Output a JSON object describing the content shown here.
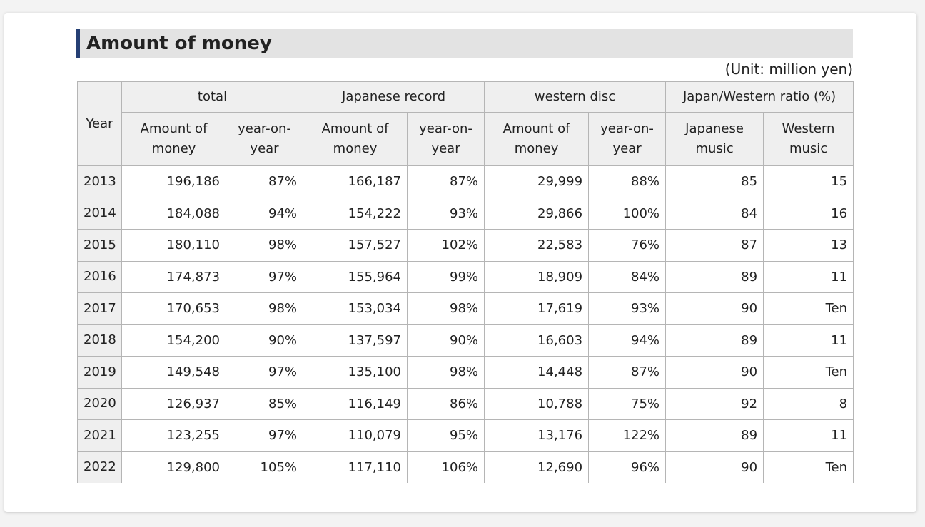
{
  "title": "Amount of money",
  "unit_note": "(Unit: million yen)",
  "colors": {
    "title_accent": "#253f74",
    "title_bar_bg": "#e3e3e3",
    "header_bg": "#efefef",
    "border": "#b5b5b5"
  },
  "table": {
    "year_header": "Year",
    "groups": [
      {
        "label": "total",
        "subs": [
          "Amount of money",
          "year-on-year"
        ]
      },
      {
        "label": "Japanese record",
        "subs": [
          "Amount of money",
          "year-on-year"
        ]
      },
      {
        "label": "western disc",
        "subs": [
          "Amount of money",
          "year-on-year"
        ]
      },
      {
        "label": "Japan/Western ratio (%)",
        "subs": [
          "Japanese music",
          "Western music"
        ]
      }
    ],
    "rows": [
      {
        "year": "2013",
        "values": [
          "196,186",
          "87%",
          "166,187",
          "87%",
          "29,999",
          "88%",
          "85",
          "15"
        ]
      },
      {
        "year": "2014",
        "values": [
          "184,088",
          "94%",
          "154,222",
          "93%",
          "29,866",
          "100%",
          "84",
          "16"
        ]
      },
      {
        "year": "2015",
        "values": [
          "180,110",
          "98%",
          "157,527",
          "102%",
          "22,583",
          "76%",
          "87",
          "13"
        ]
      },
      {
        "year": "2016",
        "values": [
          "174,873",
          "97%",
          "155,964",
          "99%",
          "18,909",
          "84%",
          "89",
          "11"
        ]
      },
      {
        "year": "2017",
        "values": [
          "170,653",
          "98%",
          "153,034",
          "98%",
          "17,619",
          "93%",
          "90",
          "Ten"
        ]
      },
      {
        "year": "2018",
        "values": [
          "154,200",
          "90%",
          "137,597",
          "90%",
          "16,603",
          "94%",
          "89",
          "11"
        ]
      },
      {
        "year": "2019",
        "values": [
          "149,548",
          "97%",
          "135,100",
          "98%",
          "14,448",
          "87%",
          "90",
          "Ten"
        ]
      },
      {
        "year": "2020",
        "values": [
          "126,937",
          "85%",
          "116,149",
          "86%",
          "10,788",
          "75%",
          "92",
          "8"
        ]
      },
      {
        "year": "2021",
        "values": [
          "123,255",
          "97%",
          "110,079",
          "95%",
          "13,176",
          "122%",
          "89",
          "11"
        ]
      },
      {
        "year": "2022",
        "values": [
          "129,800",
          "105%",
          "117,110",
          "106%",
          "12,690",
          "96%",
          "90",
          "Ten"
        ]
      }
    ]
  }
}
